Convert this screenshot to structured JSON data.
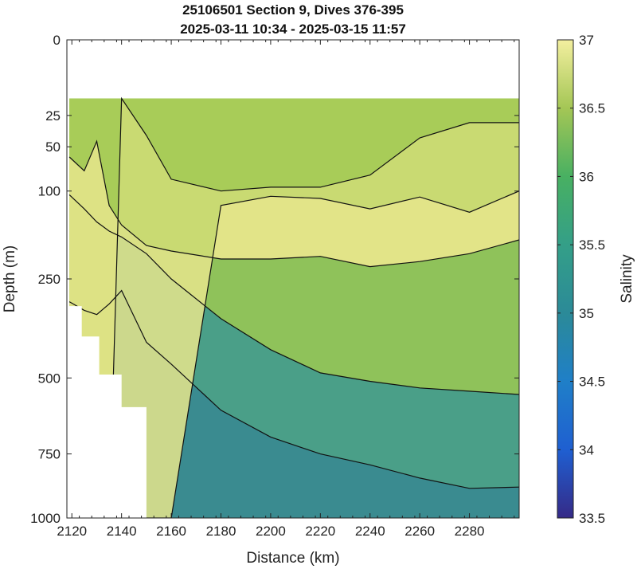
{
  "chart_data": {
    "type": "heatmap",
    "title": "25106501 Section 9, Dives 376-395",
    "subtitle": "2025-03-11 10:34 - 2025-03-15 11:57",
    "xlabel": "Distance (km)",
    "ylabel": "Depth (m)",
    "colorbar_label": "Salinity",
    "xlim": [
      2118,
      2300
    ],
    "ylim": [
      0,
      1000
    ],
    "y_scale": "sqrt",
    "x_ticks": [
      2120,
      2140,
      2160,
      2180,
      2200,
      2220,
      2240,
      2260,
      2280
    ],
    "y_ticks": [
      0,
      25,
      50,
      100,
      250,
      500,
      750,
      1000
    ],
    "colorbar_range": [
      33.5,
      37
    ],
    "colorbar_ticks": [
      33.5,
      34,
      34.5,
      35,
      35.5,
      36,
      36.5,
      37
    ],
    "colormap": "parula",
    "contour_levels": [
      35.5,
      36,
      36.5,
      36.7
    ],
    "data_top_depth": 15,
    "x_min_data": 2119,
    "x_max_data": 2300,
    "bottom_mask": [
      {
        "x": 2119,
        "depth": 310
      },
      {
        "x": 2124,
        "depth": 385
      },
      {
        "x": 2131,
        "depth": 490
      },
      {
        "x": 2140,
        "depth": 590
      },
      {
        "x": 2150,
        "depth": 1000
      }
    ],
    "profiles": {
      "x": [
        2119,
        2125,
        2130,
        2135,
        2140,
        2150,
        2160,
        2180,
        2200,
        2220,
        2240,
        2260,
        2280,
        2300
      ],
      "d_36_7": [
        1000,
        1000,
        1000,
        1000,
        1000,
        1000,
        1000,
        120,
        107,
        110,
        125,
        108,
        130,
        100
      ],
      "d_36_5": [
        1000,
        1000,
        1000,
        1000,
        15,
        40,
        85,
        100,
        95,
        95,
        80,
        42,
        30,
        30
      ],
      "d_36": [
        60,
        75,
        45,
        120,
        150,
        185,
        195,
        210,
        210,
        205,
        225,
        215,
        200,
        175
      ],
      "d_35_5": [
        105,
        125,
        145,
        160,
        170,
        200,
        250,
        340,
        420,
        485,
        510,
        530,
        540,
        550
      ],
      "d_35": [
        300,
        320,
        330,
        305,
        275,
        400,
        460,
        600,
        690,
        750,
        790,
        840,
        880,
        875
      ]
    }
  }
}
